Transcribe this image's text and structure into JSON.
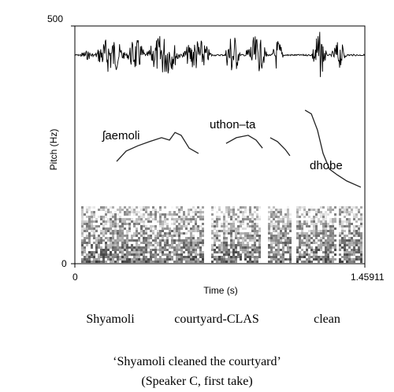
{
  "chart_data": {
    "type": "line",
    "x_label": "Time (s)",
    "y_label": "Pitch (Hz)",
    "xlim": [
      0,
      1.45911
    ],
    "ylim": [
      0,
      500
    ],
    "xticks": [
      0,
      1.45911
    ],
    "yticks": [
      0,
      500
    ],
    "x": [
      0.21,
      0.258,
      0.317,
      0.377,
      0.436,
      0.476,
      0.504,
      0.535,
      0.575,
      0.622,
      null,
      0.761,
      0.813,
      0.872,
      0.912,
      0.944,
      null,
      0.983,
      1.019,
      1.059,
      1.082,
      null,
      1.158,
      1.19,
      1.221,
      1.249,
      1.281,
      1.32,
      1.368,
      1.439
    ],
    "series": [
      {
        "color": "#222222",
        "values": [
          215,
          237,
          248,
          257,
          265,
          260,
          276,
          270,
          243,
          232,
          null,
          253,
          265,
          270,
          260,
          243,
          null,
          265,
          257,
          240,
          227,
          null,
          323,
          315,
          281,
          232,
          199,
          187,
          174,
          161
        ]
      }
    ],
    "annotations": [
      "ʃaemoli",
      "uthon–ta",
      "dhobe"
    ],
    "gloss": [
      "Shyamoli",
      "courtyard-CLAS",
      "clean"
    ],
    "translation": "‘Shyamoli cleaned the courtyard’",
    "speaker_note": "(Speaker C, first take)"
  }
}
